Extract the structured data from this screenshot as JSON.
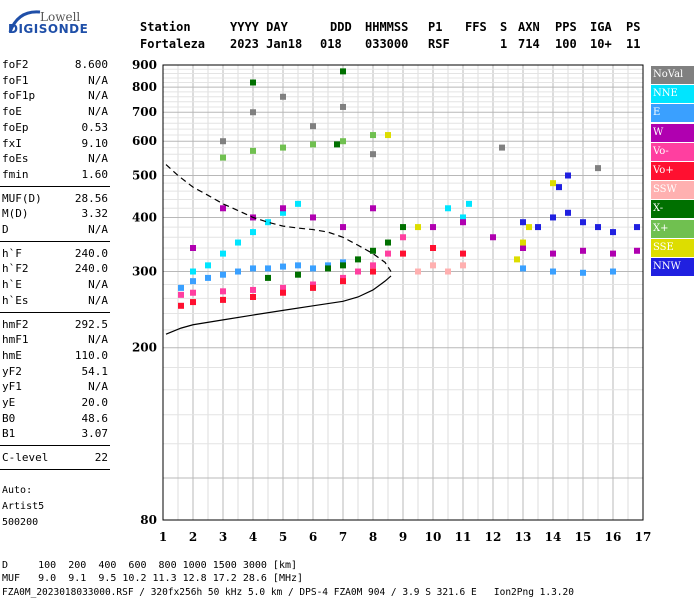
{
  "logo": {
    "line1": "Lowell",
    "line2": "DIGISONDE"
  },
  "header": {
    "line1": [
      "Station",
      "YYYY DAY",
      "DDD",
      "HHMMSS",
      "P1",
      "FFS",
      "S",
      "AXN",
      "PPS",
      "IGA",
      "PS"
    ],
    "line2": [
      "Fortaleza",
      "2023 Jan18",
      "018",
      "033000",
      "RSF",
      "1",
      "714",
      "100",
      "10+",
      "11"
    ]
  },
  "params": [
    [
      {
        "label": "foF2",
        "value": "8.600"
      },
      {
        "label": "foF1",
        "value": "N/A"
      },
      {
        "label": "foF1p",
        "value": "N/A"
      },
      {
        "label": "foE",
        "value": "N/A"
      },
      {
        "label": "foEp",
        "value": "0.53"
      },
      {
        "label": "fxI",
        "value": "9.10"
      },
      {
        "label": "foEs",
        "value": "N/A"
      },
      {
        "label": "fmin",
        "value": "1.60"
      }
    ],
    [
      {
        "label": "MUF(D)",
        "value": "28.56"
      },
      {
        "label": "M(D)",
        "value": "3.32"
      },
      {
        "label": "D",
        "value": "N/A"
      }
    ],
    [
      {
        "label": "h`F",
        "value": "240.0"
      },
      {
        "label": "h`F2",
        "value": "240.0"
      },
      {
        "label": "h`E",
        "value": "N/A"
      },
      {
        "label": "h`Es",
        "value": "N/A"
      }
    ],
    [
      {
        "label": "hmF2",
        "value": "292.5"
      },
      {
        "label": "hmF1",
        "value": "N/A"
      },
      {
        "label": "hmE",
        "value": "110.0"
      },
      {
        "label": "yF2",
        "value": "54.1"
      },
      {
        "label": "yF1",
        "value": "N/A"
      },
      {
        "label": "yE",
        "value": "20.0"
      },
      {
        "label": "B0",
        "value": "48.6"
      },
      {
        "label": "B1",
        "value": "3.07"
      }
    ],
    [
      {
        "label": "C-level",
        "value": "22"
      }
    ]
  ],
  "auto": {
    "line1": "Auto:",
    "line2": "Artist5",
    "line3": "500200"
  },
  "footer": {
    "d_row": "D     100  200  400  600  800 1000 1500 3000 [km]",
    "muf_row": "MUF   9.0  9.1  9.5 10.2 11.3 12.8 17.2 28.6 [MHz]",
    "file_row": "FZA0M_2023018033000.RSF / 320fx256h 50 kHz 5.0 km / DPS-4 FZA0M 904 / 3.9 S 321.6 E   Ion2Png 1.3.20"
  },
  "legend": [
    {
      "label": "NoVal",
      "color": "#808080"
    },
    {
      "label": "NNE",
      "color": "#00e5ff"
    },
    {
      "label": "E",
      "color": "#3aa0ff"
    },
    {
      "label": "W",
      "color": "#b000b0"
    },
    {
      "label": "Vo-",
      "color": "#ff3fa0"
    },
    {
      "label": "Vo+",
      "color": "#ff1030"
    },
    {
      "label": "SSW",
      "color": "#ffb0b0"
    },
    {
      "label": "X-",
      "color": "#007000"
    },
    {
      "label": "X+",
      "color": "#70c050"
    },
    {
      "label": "SSE",
      "color": "#dddd00"
    },
    {
      "label": "NNW",
      "color": "#2020e0"
    }
  ],
  "chart_data": {
    "type": "scatter",
    "title": "",
    "xlabel": "",
    "ylabel": "",
    "xlim": [
      1,
      17
    ],
    "ylim": [
      80,
      900
    ],
    "x_ticks": [
      1,
      2,
      3,
      4,
      5,
      6,
      7,
      8,
      9,
      10,
      11,
      12,
      13,
      14,
      15,
      16,
      17
    ],
    "y_ticks": [
      80,
      200,
      300,
      400,
      500,
      600,
      700,
      800,
      900
    ],
    "y_scale": "log",
    "grid": true,
    "legend_position": "right",
    "series": [
      {
        "name": "E",
        "points": [
          [
            1.6,
            275
          ],
          [
            2.0,
            285
          ],
          [
            2.5,
            290
          ],
          [
            3.0,
            295
          ],
          [
            3.5,
            300
          ],
          [
            4.0,
            305
          ],
          [
            4.5,
            305
          ],
          [
            5.0,
            308
          ],
          [
            5.5,
            310
          ],
          [
            6.0,
            305
          ],
          [
            6.5,
            310
          ],
          [
            7.0,
            315
          ],
          [
            13.0,
            305
          ],
          [
            14.0,
            300
          ],
          [
            15.0,
            298
          ],
          [
            16.0,
            300
          ]
        ]
      },
      {
        "name": "NNE",
        "points": [
          [
            2.0,
            300
          ],
          [
            2.5,
            310
          ],
          [
            3.0,
            330
          ],
          [
            3.5,
            350
          ],
          [
            4.0,
            370
          ],
          [
            4.5,
            390
          ],
          [
            5.0,
            410
          ],
          [
            5.5,
            430
          ],
          [
            10.5,
            420
          ],
          [
            11.0,
            400
          ],
          [
            11.2,
            430
          ]
        ]
      },
      {
        "name": "W",
        "points": [
          [
            2.0,
            340
          ],
          [
            3.0,
            420
          ],
          [
            4.0,
            400
          ],
          [
            5.0,
            420
          ],
          [
            6.0,
            400
          ],
          [
            7.0,
            380
          ],
          [
            8.0,
            420
          ],
          [
            10.0,
            380
          ],
          [
            11.0,
            390
          ],
          [
            12.0,
            360
          ],
          [
            13.0,
            340
          ],
          [
            14.0,
            330
          ],
          [
            15.0,
            335
          ],
          [
            16.0,
            330
          ],
          [
            16.8,
            335
          ]
        ]
      },
      {
        "name": "Vo-",
        "points": [
          [
            1.6,
            265
          ],
          [
            2.0,
            268
          ],
          [
            3.0,
            270
          ],
          [
            4.0,
            272
          ],
          [
            5.0,
            275
          ],
          [
            6.0,
            280
          ],
          [
            7.0,
            290
          ],
          [
            7.5,
            300
          ],
          [
            8.0,
            310
          ],
          [
            8.5,
            330
          ],
          [
            9.0,
            360
          ]
        ]
      },
      {
        "name": "Vo+",
        "points": [
          [
            1.6,
            250
          ],
          [
            2.0,
            255
          ],
          [
            3.0,
            258
          ],
          [
            4.0,
            262
          ],
          [
            5.0,
            268
          ],
          [
            6.0,
            275
          ],
          [
            7.0,
            285
          ],
          [
            8.0,
            300
          ],
          [
            9.0,
            330
          ],
          [
            10.0,
            340
          ],
          [
            11.0,
            330
          ]
        ]
      },
      {
        "name": "SSW",
        "points": [
          [
            9.5,
            300
          ],
          [
            10.0,
            310
          ],
          [
            10.5,
            300
          ],
          [
            11.0,
            310
          ]
        ]
      },
      {
        "name": "X-",
        "points": [
          [
            4.5,
            290
          ],
          [
            5.5,
            295
          ],
          [
            6.5,
            305
          ],
          [
            7.0,
            310
          ],
          [
            7.5,
            320
          ],
          [
            8.0,
            335
          ],
          [
            8.5,
            350
          ],
          [
            9.0,
            380
          ],
          [
            6.8,
            590
          ],
          [
            4.0,
            820
          ],
          [
            7.0,
            870
          ]
        ]
      },
      {
        "name": "X+",
        "points": [
          [
            3.0,
            550
          ],
          [
            4.0,
            570
          ],
          [
            5.0,
            580
          ],
          [
            6.0,
            590
          ],
          [
            7.0,
            600
          ],
          [
            8.0,
            620
          ]
        ]
      },
      {
        "name": "SSE",
        "points": [
          [
            12.8,
            320
          ],
          [
            13.0,
            350
          ],
          [
            13.2,
            380
          ],
          [
            14.0,
            480
          ],
          [
            8.5,
            620
          ],
          [
            9.5,
            380
          ]
        ]
      },
      {
        "name": "NNW",
        "points": [
          [
            13.0,
            390
          ],
          [
            13.5,
            380
          ],
          [
            14.0,
            400
          ],
          [
            14.5,
            410
          ],
          [
            15.0,
            390
          ],
          [
            15.5,
            380
          ],
          [
            16.0,
            370
          ],
          [
            14.2,
            470
          ],
          [
            14.5,
            500
          ],
          [
            16.8,
            380
          ]
        ]
      },
      {
        "name": "NoVal",
        "points": [
          [
            3.0,
            600
          ],
          [
            4.0,
            700
          ],
          [
            5.0,
            760
          ],
          [
            6.0,
            650
          ],
          [
            7.0,
            720
          ],
          [
            8.0,
            560
          ],
          [
            12.3,
            580
          ],
          [
            15.5,
            520
          ]
        ]
      }
    ],
    "traces": {
      "profile_dashed": [
        [
          1.1,
          530
        ],
        [
          1.5,
          500
        ],
        [
          2.0,
          470
        ],
        [
          2.5,
          450
        ],
        [
          3.0,
          430
        ],
        [
          3.5,
          415
        ],
        [
          4.0,
          400
        ],
        [
          4.5,
          390
        ],
        [
          5.0,
          382
        ],
        [
          5.5,
          378
        ],
        [
          6.0,
          375
        ],
        [
          6.5,
          370
        ],
        [
          7.0,
          360
        ],
        [
          7.5,
          345
        ],
        [
          8.0,
          330
        ],
        [
          8.4,
          315
        ],
        [
          8.6,
          300
        ]
      ],
      "trace_solid": [
        [
          1.1,
          215
        ],
        [
          1.6,
          222
        ],
        [
          2.0,
          226
        ],
        [
          3.0,
          232
        ],
        [
          4.0,
          238
        ],
        [
          5.0,
          244
        ],
        [
          6.0,
          250
        ],
        [
          7.0,
          256
        ],
        [
          7.5,
          262
        ],
        [
          8.0,
          272
        ],
        [
          8.4,
          285
        ],
        [
          8.6,
          293
        ]
      ]
    }
  }
}
